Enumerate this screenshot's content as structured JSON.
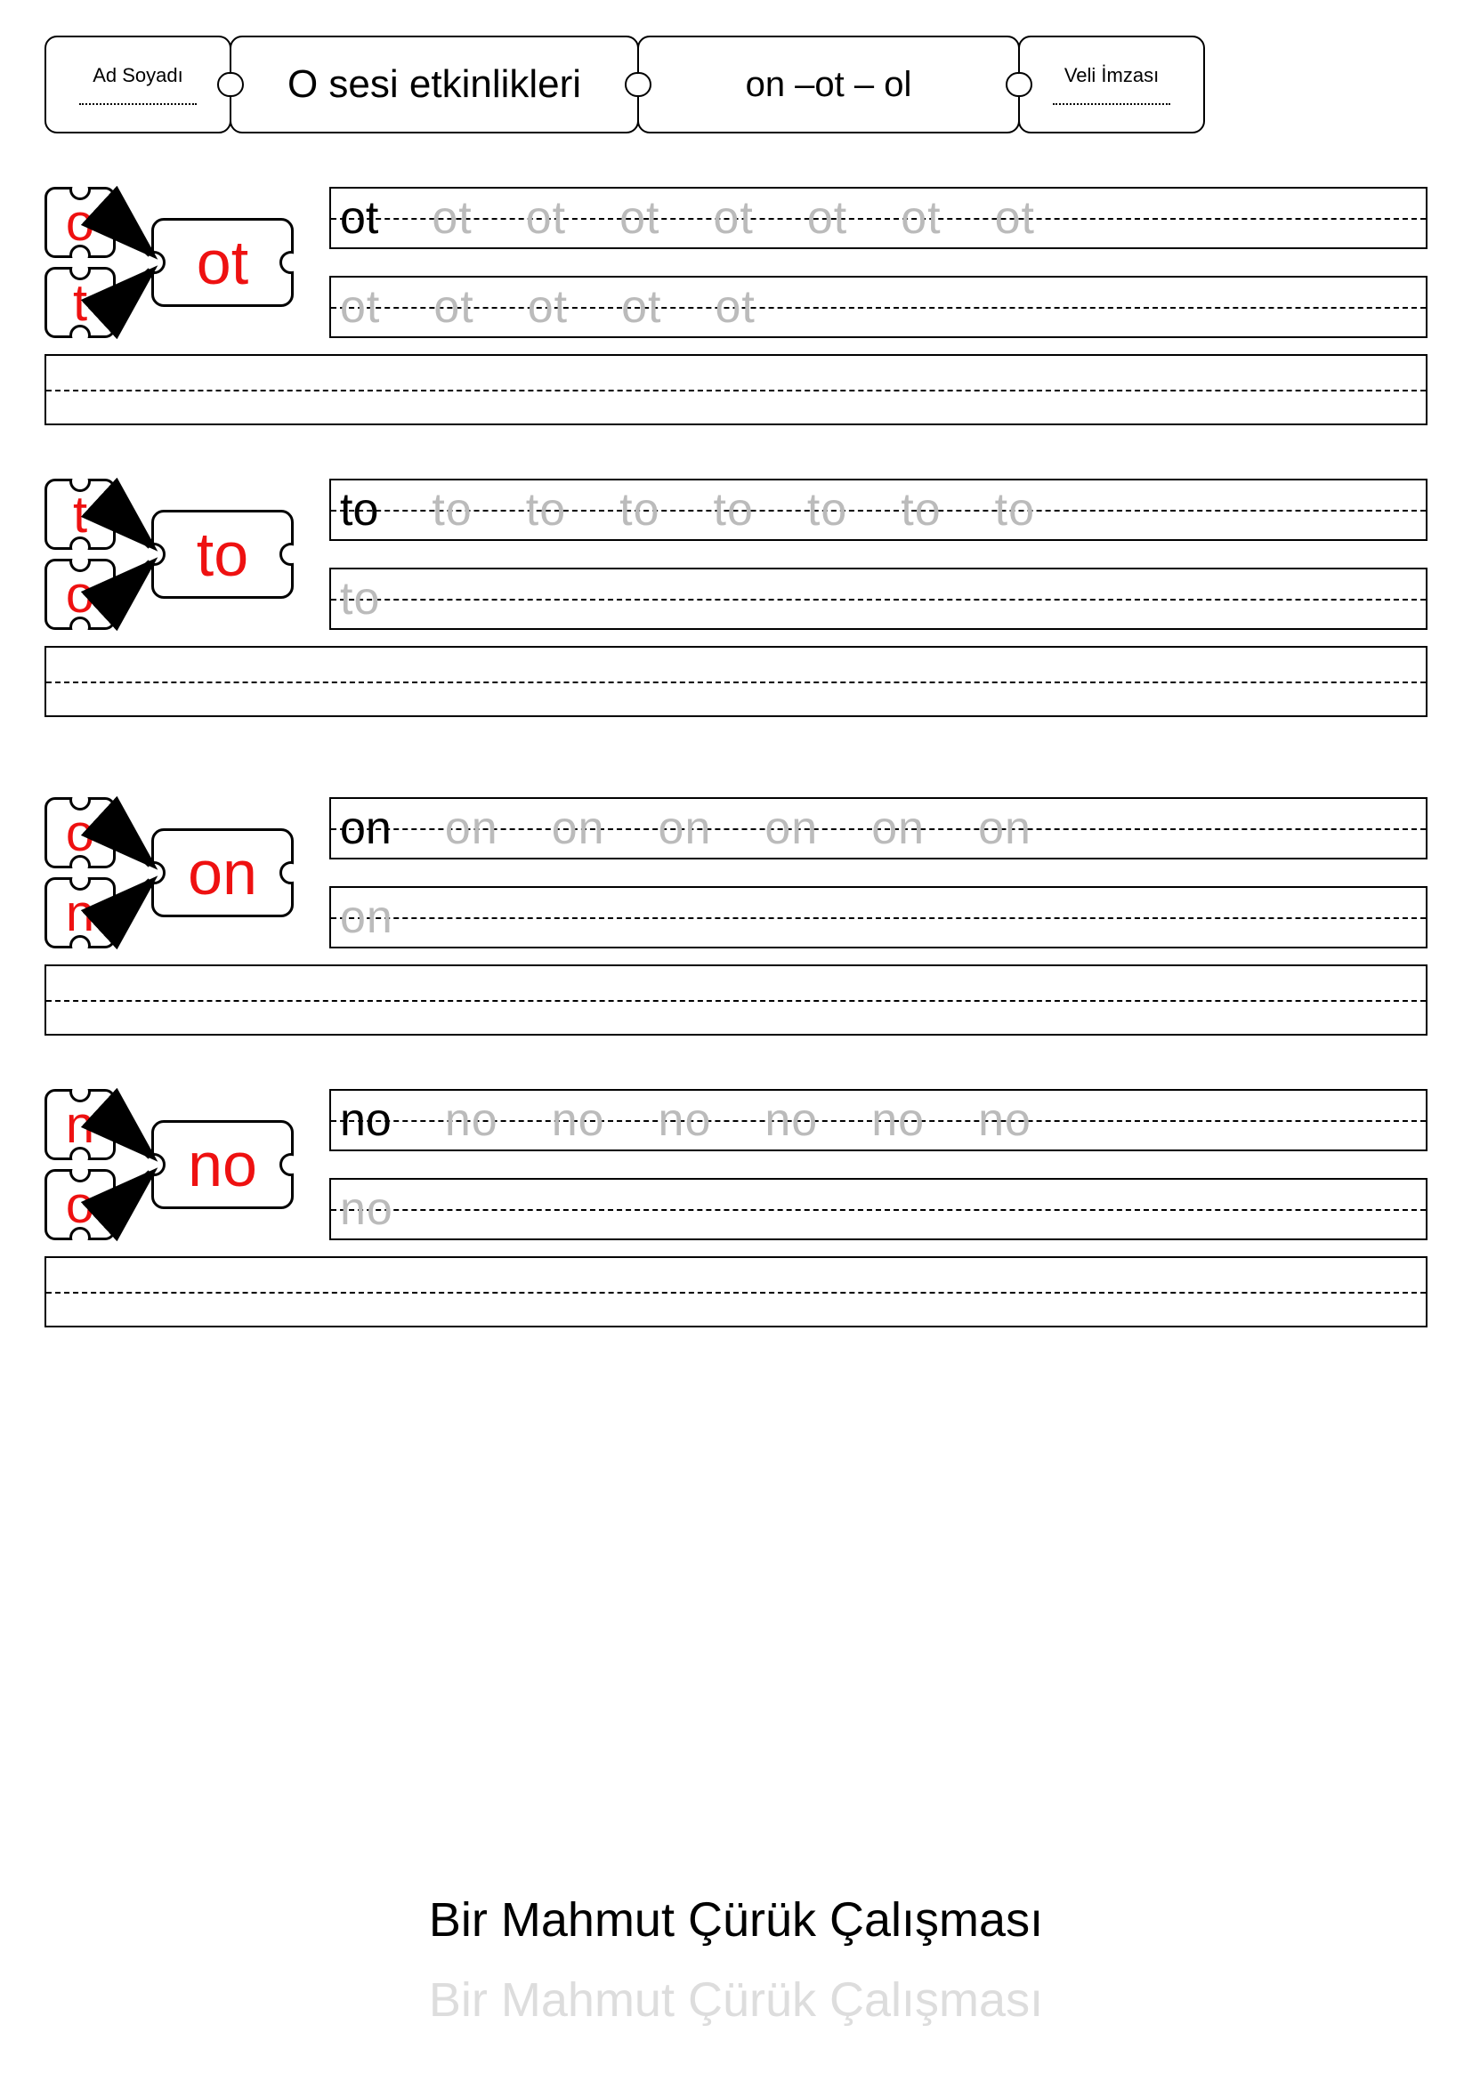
{
  "header": {
    "name_label": "Ad Soyadı",
    "title": "O sesi etkinlikleri",
    "subtitle": "on –ot – ol",
    "sign_label": "Veli İmzası"
  },
  "accent_color": "#e11",
  "trace_color": "#bbbbbb",
  "line_color": "#000000",
  "sections": [
    {
      "top_letter": "o",
      "bottom_letter": "t",
      "syllable": "ot",
      "row1_solid": "ot",
      "row1_trace": [
        "ot",
        "ot",
        "ot",
        "ot",
        "ot",
        "ot",
        "ot"
      ],
      "row2_trace": [
        "ot",
        "ot",
        "ot",
        "ot",
        "ot"
      ]
    },
    {
      "top_letter": "t",
      "bottom_letter": "o",
      "syllable": "to",
      "row1_solid": "to",
      "row1_trace": [
        "to",
        "to",
        "to",
        "to",
        "to",
        "to",
        "to"
      ],
      "row2_trace": [
        "to"
      ]
    },
    {
      "top_letter": "o",
      "bottom_letter": "n",
      "syllable": "on",
      "row1_solid": "on",
      "row1_trace": [
        "on",
        "on",
        "on",
        "on",
        "on",
        "on"
      ],
      "row2_trace": [
        "on"
      ]
    },
    {
      "top_letter": "n",
      "bottom_letter": "o",
      "syllable": "no",
      "row1_solid": "no",
      "row1_trace": [
        "no",
        "no",
        "no",
        "no",
        "no",
        "no"
      ],
      "row2_trace": [
        "no"
      ]
    }
  ],
  "footer": "Bir Mahmut Çürük Çalışması"
}
